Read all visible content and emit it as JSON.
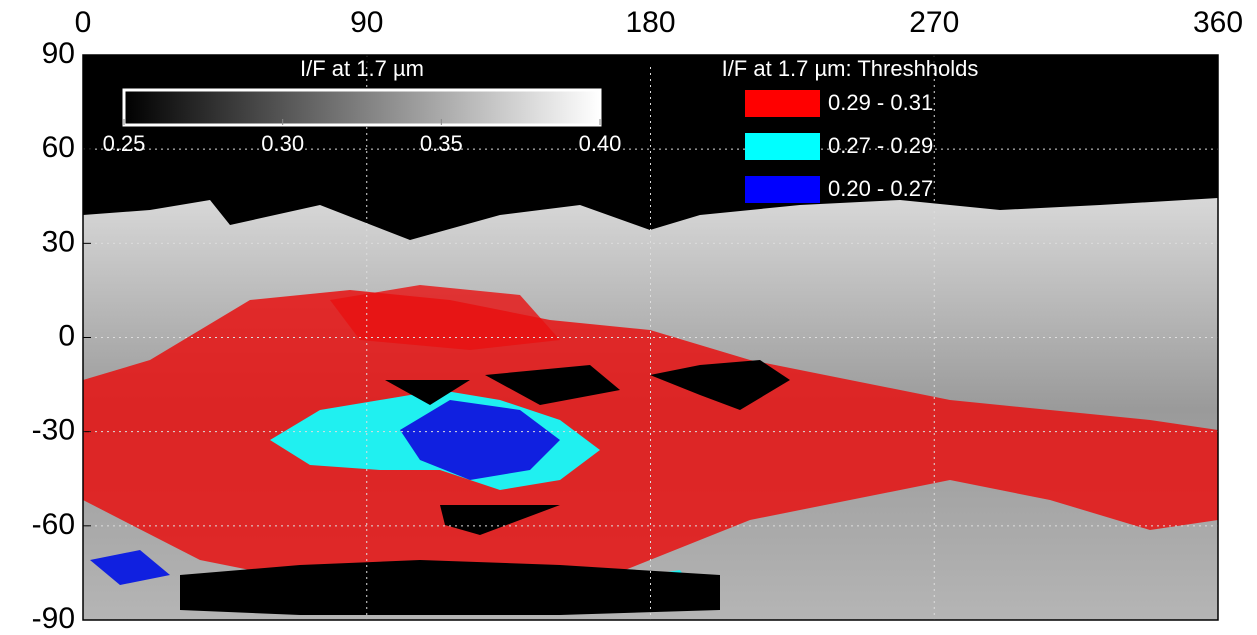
{
  "chart_data": {
    "type": "map",
    "xlim": [
      0,
      360
    ],
    "xticks": [
      0,
      90,
      180,
      270,
      360
    ],
    "ylim": [
      -90,
      90
    ],
    "yticks": [
      90,
      60,
      30,
      0,
      -30,
      -60,
      -90
    ],
    "grid": true,
    "colorbar": {
      "title": "I/F at 1.7 µm",
      "clim": [
        0.25,
        0.4
      ],
      "ticks": [
        0.25,
        {
          "value": 0.3,
          "label": "0.30"
        },
        0.35,
        {
          "value": 0.4,
          "label": "0.40"
        }
      ]
    },
    "legend": {
      "title": "I/F at 1.7 µm: Threshholds",
      "entries": [
        {
          "label": "0.29 - 0.31",
          "color": "#ff0000"
        },
        {
          "label": "0.27 - 0.29",
          "color": "#00ffff"
        },
        {
          "label": "0.20 - 0.27",
          "color": "#0000ff"
        }
      ]
    }
  }
}
